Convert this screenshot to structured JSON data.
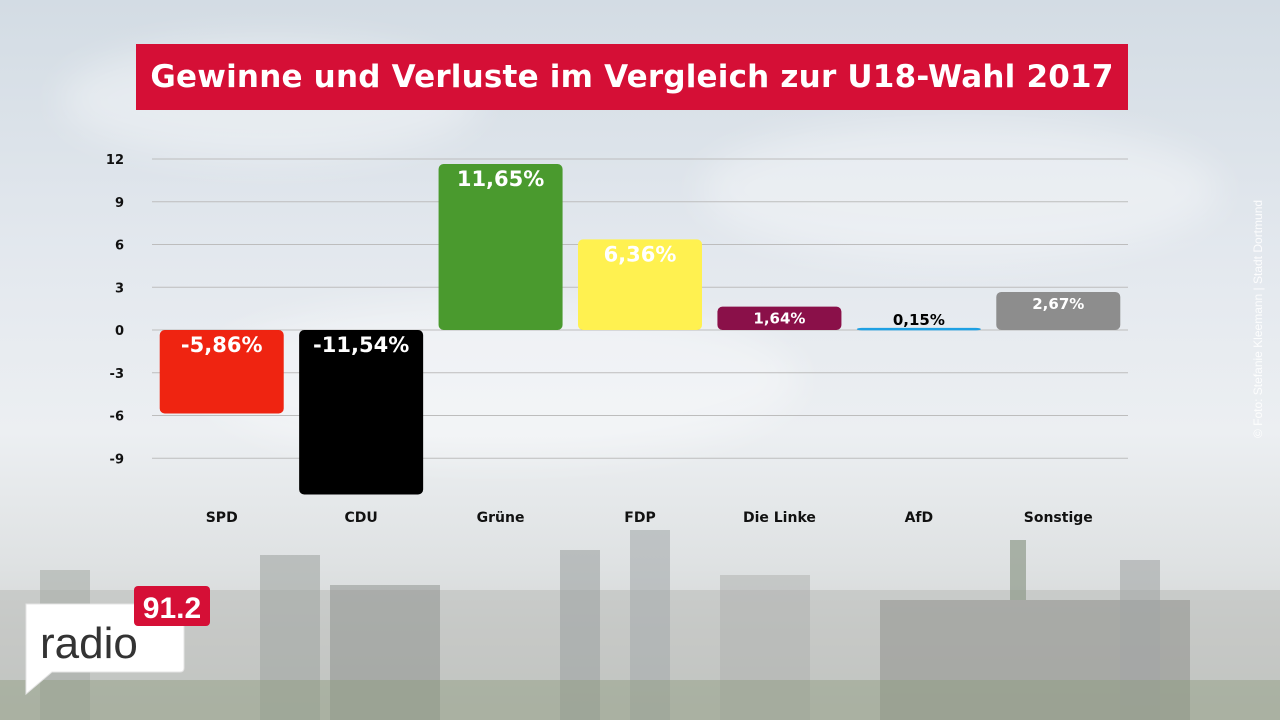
{
  "title": "Gewinne und Verluste im Vergleich zur U18-Wahl 2017",
  "credit": "© Foto: Stefanie Kleemann | Stadt Dortmund",
  "logo": {
    "word": "radio",
    "frequency": "91.2"
  },
  "colors": {
    "title_bg": "#d50f36",
    "logo_red": "#d50f36"
  },
  "chart_data": {
    "type": "bar",
    "categories": [
      "SPD",
      "CDU",
      "Grüne",
      "FDP",
      "Die Linke",
      "AfD",
      "Sonstige"
    ],
    "values": [
      -5.86,
      -11.54,
      11.65,
      6.36,
      1.64,
      0.15,
      2.67
    ],
    "data_labels": [
      "-5,86%",
      "-11,54%",
      "11,65%",
      "6,36%",
      "1,64%",
      "0,15%",
      "2,67%"
    ],
    "colors": [
      "#ef2411",
      "#000000",
      "#4a9a2e",
      "#fff150",
      "#8a1049",
      "#1ea0e3",
      "#8d8d8d"
    ],
    "label_colors": [
      "#ffffff",
      "#ffffff",
      "#ffffff",
      "#ffffff",
      "#ffffff",
      "#000000",
      "#ffffff"
    ],
    "yticks": [
      12,
      9,
      6,
      3,
      0,
      -3,
      -6,
      -9
    ],
    "ylim": [
      -12,
      12
    ],
    "grid": true,
    "title": "Gewinne und Verluste im Vergleich zur U18-Wahl 2017",
    "xlabel": "",
    "ylabel": ""
  }
}
